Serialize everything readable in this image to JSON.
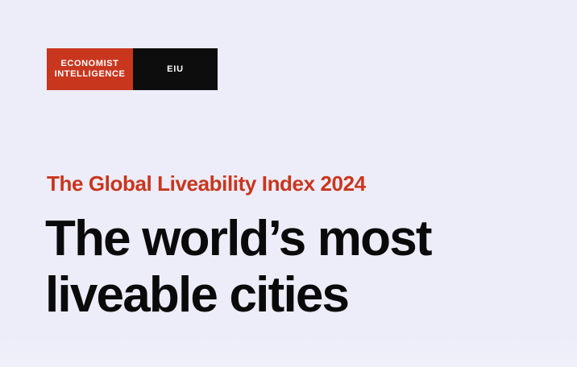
{
  "logo": {
    "left_line1": "ECONOMIST",
    "left_line2": "INTELLIGENCE",
    "right": "EIU"
  },
  "subtitle": "The Global Liveability Index 2024",
  "headline": {
    "line1": "The world’s most",
    "line2": "liveable cities"
  },
  "colors": {
    "background": "#edecf9",
    "accent_red": "#c8361e",
    "logo_black": "#0d0d0d",
    "text": "#0a0a0a"
  }
}
